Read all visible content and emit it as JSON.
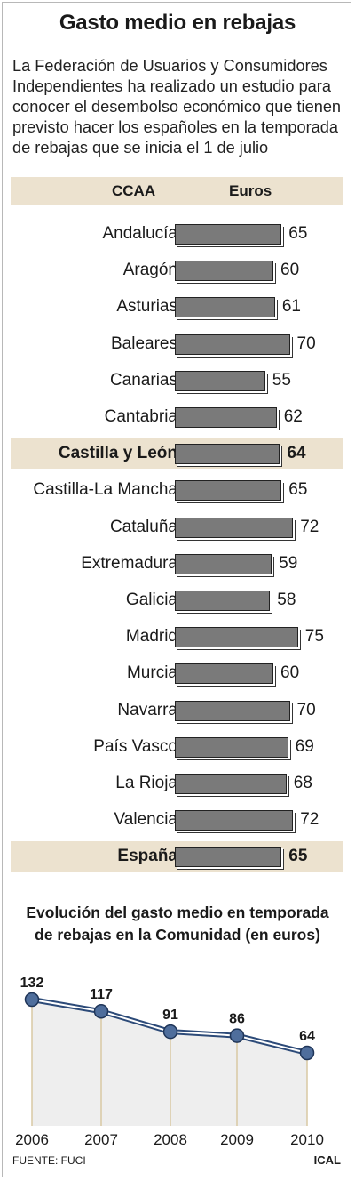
{
  "title": "Gasto medio en rebajas",
  "intro": "La Federación de Usuarios y Consumidores Independientes ha realizado un estudio para conocer el desembolso económico que tienen previsto hacer los españoles en la temporada de rebajas que se inicia el 1 de julio",
  "table_header": {
    "col1": "CCAA",
    "col2": "Euros"
  },
  "chart_data": [
    {
      "type": "bar",
      "orientation": "horizontal",
      "categories": [
        "Andalucía",
        "Aragón",
        "Asturias",
        "Baleares",
        "Canarias",
        "Cantabria",
        "Castilla y León",
        "Castilla-La Mancha",
        "Cataluña",
        "Extremadura",
        "Galicia",
        "Madrid",
        "Murcia",
        "Navarra",
        "País Vasco",
        "La Rioja",
        "Valencia",
        "España"
      ],
      "values": [
        65,
        60,
        61,
        70,
        55,
        62,
        64,
        65,
        72,
        59,
        58,
        75,
        60,
        70,
        69,
        68,
        72,
        65
      ],
      "highlighted": [
        "Castilla y León",
        "España"
      ],
      "bar_color": "#7a7a7a",
      "highlight_color": "#ece2cf",
      "xlabel": "Euros",
      "ylabel": "CCAA"
    },
    {
      "type": "line",
      "title": "Evolución del gasto medio en temporada de rebajas en la Comunidad (en euros)",
      "x": [
        "2006",
        "2007",
        "2008",
        "2009",
        "2010"
      ],
      "y": [
        132,
        117,
        91,
        86,
        64
      ],
      "line_color": "#2c4a78",
      "fill_color": "#eeeeee"
    }
  ],
  "source": "FUENTE: FUCI",
  "agency": "ICAL"
}
